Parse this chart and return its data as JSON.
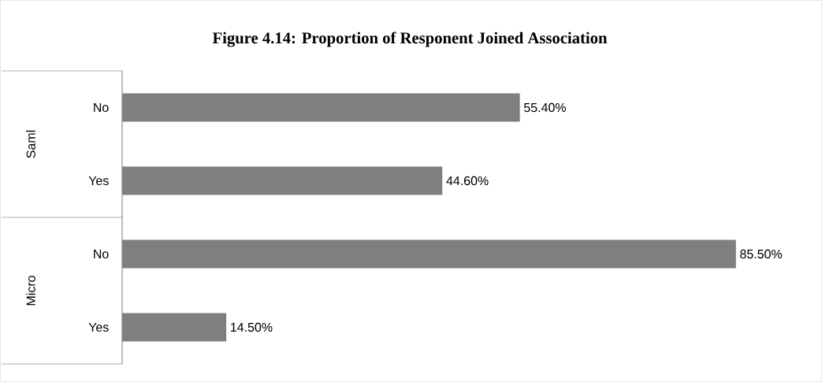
{
  "chart_data": {
    "type": "bar",
    "orientation": "horizontal",
    "title": "Figure 4.14: Proportion of Responent Joined Association",
    "categories": [
      "No",
      "Yes",
      "No",
      "Yes"
    ],
    "values": [
      55.4,
      44.6,
      85.5,
      14.5
    ],
    "value_labels": [
      "55.40%",
      "44.60%",
      "85.50%",
      "14.50%"
    ],
    "color": "#7f7f7f",
    "annotations": [
      "Saml",
      "Micro"
    ]
  }
}
